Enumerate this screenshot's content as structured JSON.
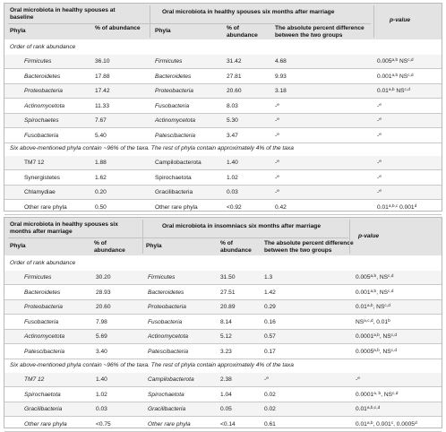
{
  "table1": {
    "head_left_title": "Oral microbiota in healthy spouses at baseline",
    "head_right_title": "Oral microbiota in healthy spouses six months after marriage",
    "head_pvalue": "p-value",
    "col_phyla_1": "Phyla",
    "col_abund_1": "% of abundance",
    "col_phyla_2": "Phyla",
    "col_abund_2": "% of abundance",
    "col_diff": "The absolute percent difference between the two groups",
    "section_note": "Order of rank abundance",
    "mid_note": "Six above-mentioned phyla contain ~96% of the taxa. The rest of phyla contain approximately 4% of the taxa",
    "rows_a": [
      {
        "p1": "Firmicutes",
        "a1": "36.10",
        "p2": "Firmicutes",
        "a2": "31.42",
        "d": "4.68",
        "pv": "0.005",
        "sup1": "a,b",
        "pv2": " NS",
        "sup2": "c,d"
      },
      {
        "p1": "Bacteroidetes",
        "a1": "17.88",
        "p2": "Bacteroidetes",
        "a2": "27.81",
        "d": "9.93",
        "pv": "0.001",
        "sup1": "a,b",
        "pv2": " NS",
        "sup2": "c,d"
      },
      {
        "p1": "Proteobacteria",
        "a1": "17.42",
        "p2": "Proteobacteria",
        "a2": "20.60",
        "d": "3.18",
        "pv": "0.01",
        "sup1": "a,b",
        "pv2": " NS",
        "sup2": "c,d"
      },
      {
        "p1": "Actinomycetota",
        "a1": "11.33",
        "p2": "Fusobacteria",
        "a2": "8.03",
        "d": "-e",
        "pv": "-e",
        "sup1": "",
        "pv2": "",
        "sup2": ""
      },
      {
        "p1": "Spirochaetes",
        "a1": "7.67",
        "p2": "Actinomycetota",
        "a2": "5.30",
        "d": "-e",
        "pv": "-e",
        "sup1": "",
        "pv2": "",
        "sup2": ""
      },
      {
        "p1": "Fusobacteria",
        "a1": "5.40",
        "p2": "Patescibacteria",
        "a2": "3.47",
        "d": "-e",
        "pv": "-e",
        "sup1": "",
        "pv2": "",
        "sup2": ""
      }
    ],
    "rows_b": [
      {
        "p1": "TM7 12",
        "a1": "1.88",
        "p2": "Campilobacterota",
        "a2": "1.40",
        "d": "-e",
        "pv": "-e",
        "sup1": "",
        "pv2": "",
        "sup2": ""
      },
      {
        "p1": "Synergistetes",
        "a1": "1.62",
        "p2": "Spirochaetota",
        "a2": "1.02",
        "d": "-e",
        "pv": "-e",
        "sup1": "",
        "pv2": "",
        "sup2": ""
      },
      {
        "p1": "Chlamydiae",
        "a1": "0.20",
        "p2": "Gracilibacteria",
        "a2": "0.03",
        "d": "-e",
        "pv": "-e",
        "sup1": "",
        "pv2": "",
        "sup2": ""
      },
      {
        "p1": "Other rare phyla",
        "a1": "0.50",
        "p2": "Other rare phyla",
        "a2": "<0.92",
        "d": "0.42",
        "pv": "0.01",
        "sup1": "a,b,c",
        "pv2": " 0.001",
        "sup2": "d"
      }
    ]
  },
  "table2": {
    "head_left_title": "Oral microbiota in healthy spouses six months after marriage",
    "head_right_title": "Oral microbiota in insomniacs six months after marriage",
    "head_pvalue": "p-value",
    "col_phyla_1": "Phyla",
    "col_abund_1": "% of abundance",
    "col_phyla_2": "Phyla",
    "col_abund_2": "% of abundance",
    "col_diff": "The absolute percent difference between the two groups",
    "section_note": "Order of rank abundance",
    "mid_note": "Six above-mentioned phyla contain ~96% of the taxa. The rest of phyla contain approximately 4% of the taxa",
    "rows_a": [
      {
        "p1": "Firmicutes",
        "a1": "30.20",
        "p2": "Firmicutes",
        "a2": "31.50",
        "d": "1.3",
        "pv": "0.005",
        "sup1": "a,b",
        "pv2": ", NS",
        "sup2": "c,d"
      },
      {
        "p1": "Bacteroidetes",
        "a1": "28.93",
        "p2": "Bacteroidetes",
        "a2": "27.51",
        "d": "1.42",
        "pv": "0.001",
        "sup1": "a,b",
        "pv2": ", NS",
        "sup2": "c,d"
      },
      {
        "p1": "Proteobacteria",
        "a1": "20.60",
        "p2": "Proteobacteria",
        "a2": "20.89",
        "d": "0.29",
        "pv": "0.01",
        "sup1": "a,b",
        "pv2": ", NS",
        "sup2": "c,d"
      },
      {
        "p1": "Fusobacteria",
        "a1": "7.98",
        "p2": "Fusobacteria",
        "a2": "8.14",
        "d": "0.16",
        "pv": "NS",
        "sup1": "a,c,d",
        "pv2": ", 0.01",
        "sup2": "b"
      },
      {
        "p1": "Actinomycetota",
        "a1": "5.69",
        "p2": "Actinomycetota",
        "a2": "5.12",
        "d": "0.57",
        "pv": "0.0001",
        "sup1": "a,b",
        "pv2": ", NS",
        "sup2": "c,d"
      },
      {
        "p1": "Patescibacteria",
        "a1": "3.40",
        "p2": "Patescibacteria",
        "a2": "3.23",
        "d": "0.17",
        "pv": "0.0005",
        "sup1": "a,b",
        "pv2": ", NS",
        "sup2": "c,d"
      }
    ],
    "rows_b": [
      {
        "p1": "TM7 12",
        "a1": "1.40",
        "p2": "Campilobacterota",
        "a2": "2.38",
        "d": "-e",
        "pv": "-e",
        "sup1": "",
        "pv2": "",
        "sup2": ""
      },
      {
        "p1": "Spirochaetota",
        "a1": "1.02",
        "p2": "Spirochaetota",
        "a2": "1.04",
        "d": "0.02",
        "pv": "0.0001",
        "sup1": "a, b",
        "pv2": ", NS",
        "sup2": "c,d"
      },
      {
        "p1": "Gracilibacteria",
        "a1": "0.03",
        "p2": "Gracilibacteria",
        "a2": "0.05",
        "d": "0.02",
        "pv": "0.01",
        "sup1": "a,b,c,d",
        "pv2": "",
        "sup2": ""
      },
      {
        "p1": "Other rare phyla",
        "a1": "<0.75",
        "p2": "Other rare phyla",
        "a2": "<0.14",
        "d": "0.61",
        "pv": "0.01",
        "sup1": "a,b",
        "pv2": ", 0.001",
        "sup2": "c",
        "pv3": ", 0.0005",
        "sup3": "d"
      }
    ]
  }
}
